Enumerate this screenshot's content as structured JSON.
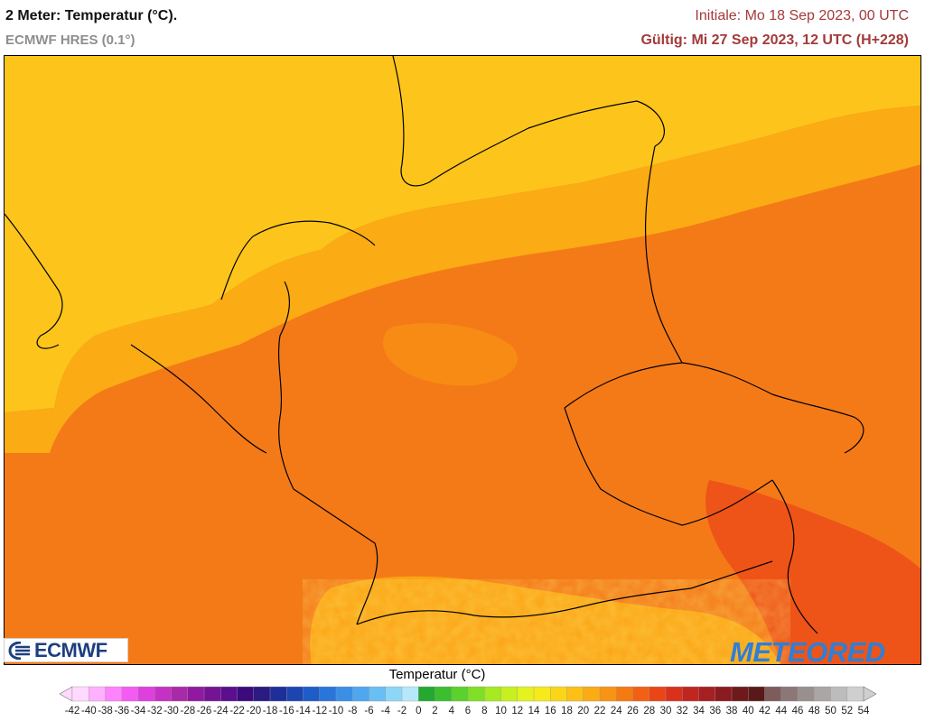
{
  "header": {
    "title": "2 Meter: Temperatur (°C).",
    "model": "ECMWF HRES (0.1°)",
    "initial": "Initiale: Mo 18 Sep 2023, 00 UTC",
    "valid": "Gültig: Mi 27 Sep 2023, 12 UTC (H+228)"
  },
  "logos": {
    "left": "ECMWF",
    "right": "METEORED"
  },
  "legend": {
    "title": "Temperatur (°C)",
    "ticks": [
      "-42",
      "-40",
      "-38",
      "-36",
      "-34",
      "-32",
      "-30",
      "-28",
      "-26",
      "-24",
      "-22",
      "-20",
      "-18",
      "-16",
      "-14",
      "-12",
      "-10",
      "-8",
      "-6",
      "-4",
      "-2",
      "0",
      "2",
      "4",
      "6",
      "8",
      "10",
      "12",
      "14",
      "16",
      "18",
      "20",
      "22",
      "24",
      "26",
      "28",
      "30",
      "32",
      "34",
      "36",
      "38",
      "40",
      "42",
      "44",
      "46",
      "48",
      "50",
      "52",
      "54"
    ],
    "colors": [
      "#ffd9ff",
      "#ffb0ff",
      "#ff82ff",
      "#f25cf2",
      "#dd40dd",
      "#c531c5",
      "#a92aa9",
      "#9019a0",
      "#751395",
      "#5b0e8e",
      "#3b0a7d",
      "#2a1a82",
      "#1f2f99",
      "#1d45b0",
      "#1e5cc8",
      "#2a75da",
      "#3a8ee6",
      "#4ea7ef",
      "#69bff5",
      "#8dd6f8",
      "#b7e8f9",
      "#25a830",
      "#3bbf2f",
      "#5ad12c",
      "#7fdf27",
      "#a5ea22",
      "#c8f01f",
      "#e4f21e",
      "#f6ea1a",
      "#fbd618",
      "#fcc016",
      "#fbab14",
      "#f99313",
      "#f67a12",
      "#f26014",
      "#ea4517",
      "#d8311c",
      "#c02520",
      "#a61f22",
      "#8a1b20",
      "#6e1a1b",
      "#581a18",
      "#7e5c5c",
      "#8c7777",
      "#9a8f8f",
      "#aba6a6",
      "#bcbcbc",
      "#cfcfcf"
    ]
  }
}
